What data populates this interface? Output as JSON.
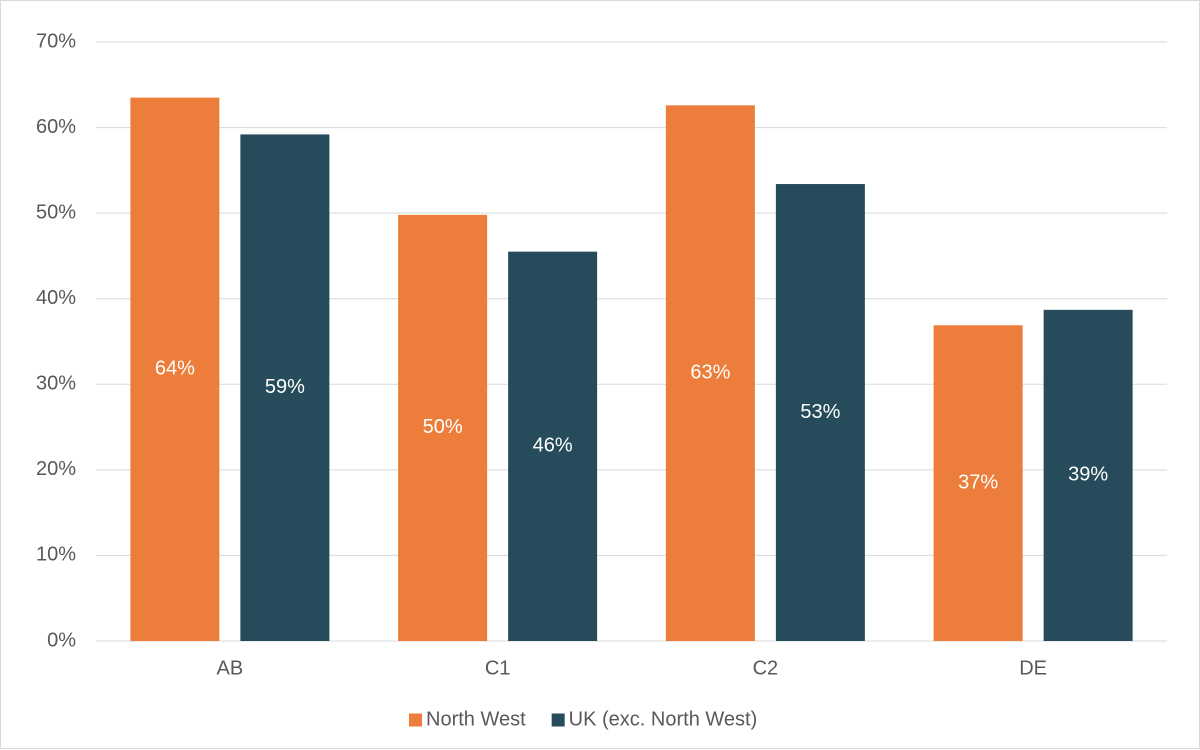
{
  "chart_data": {
    "type": "bar",
    "categories": [
      "AB",
      "C1",
      "C2",
      "DE"
    ],
    "series": [
      {
        "name": "North West",
        "values": [
          63.5,
          49.8,
          62.6,
          36.9
        ],
        "labels": [
          "64%",
          "50%",
          "63%",
          "37%"
        ],
        "color": "#ed7d3b"
      },
      {
        "name": "UK (exc. North West)",
        "values": [
          59.2,
          45.5,
          53.4,
          38.7
        ],
        "labels": [
          "59%",
          "46%",
          "53%",
          "39%"
        ],
        "color": "#264b5a"
      }
    ],
    "ylim": [
      0,
      70
    ],
    "yticks": [
      "0%",
      "10%",
      "20%",
      "30%",
      "40%",
      "50%",
      "60%",
      "70%"
    ],
    "grid": true,
    "legend_position": "bottom",
    "gridline_color": "#d9d9d9"
  }
}
